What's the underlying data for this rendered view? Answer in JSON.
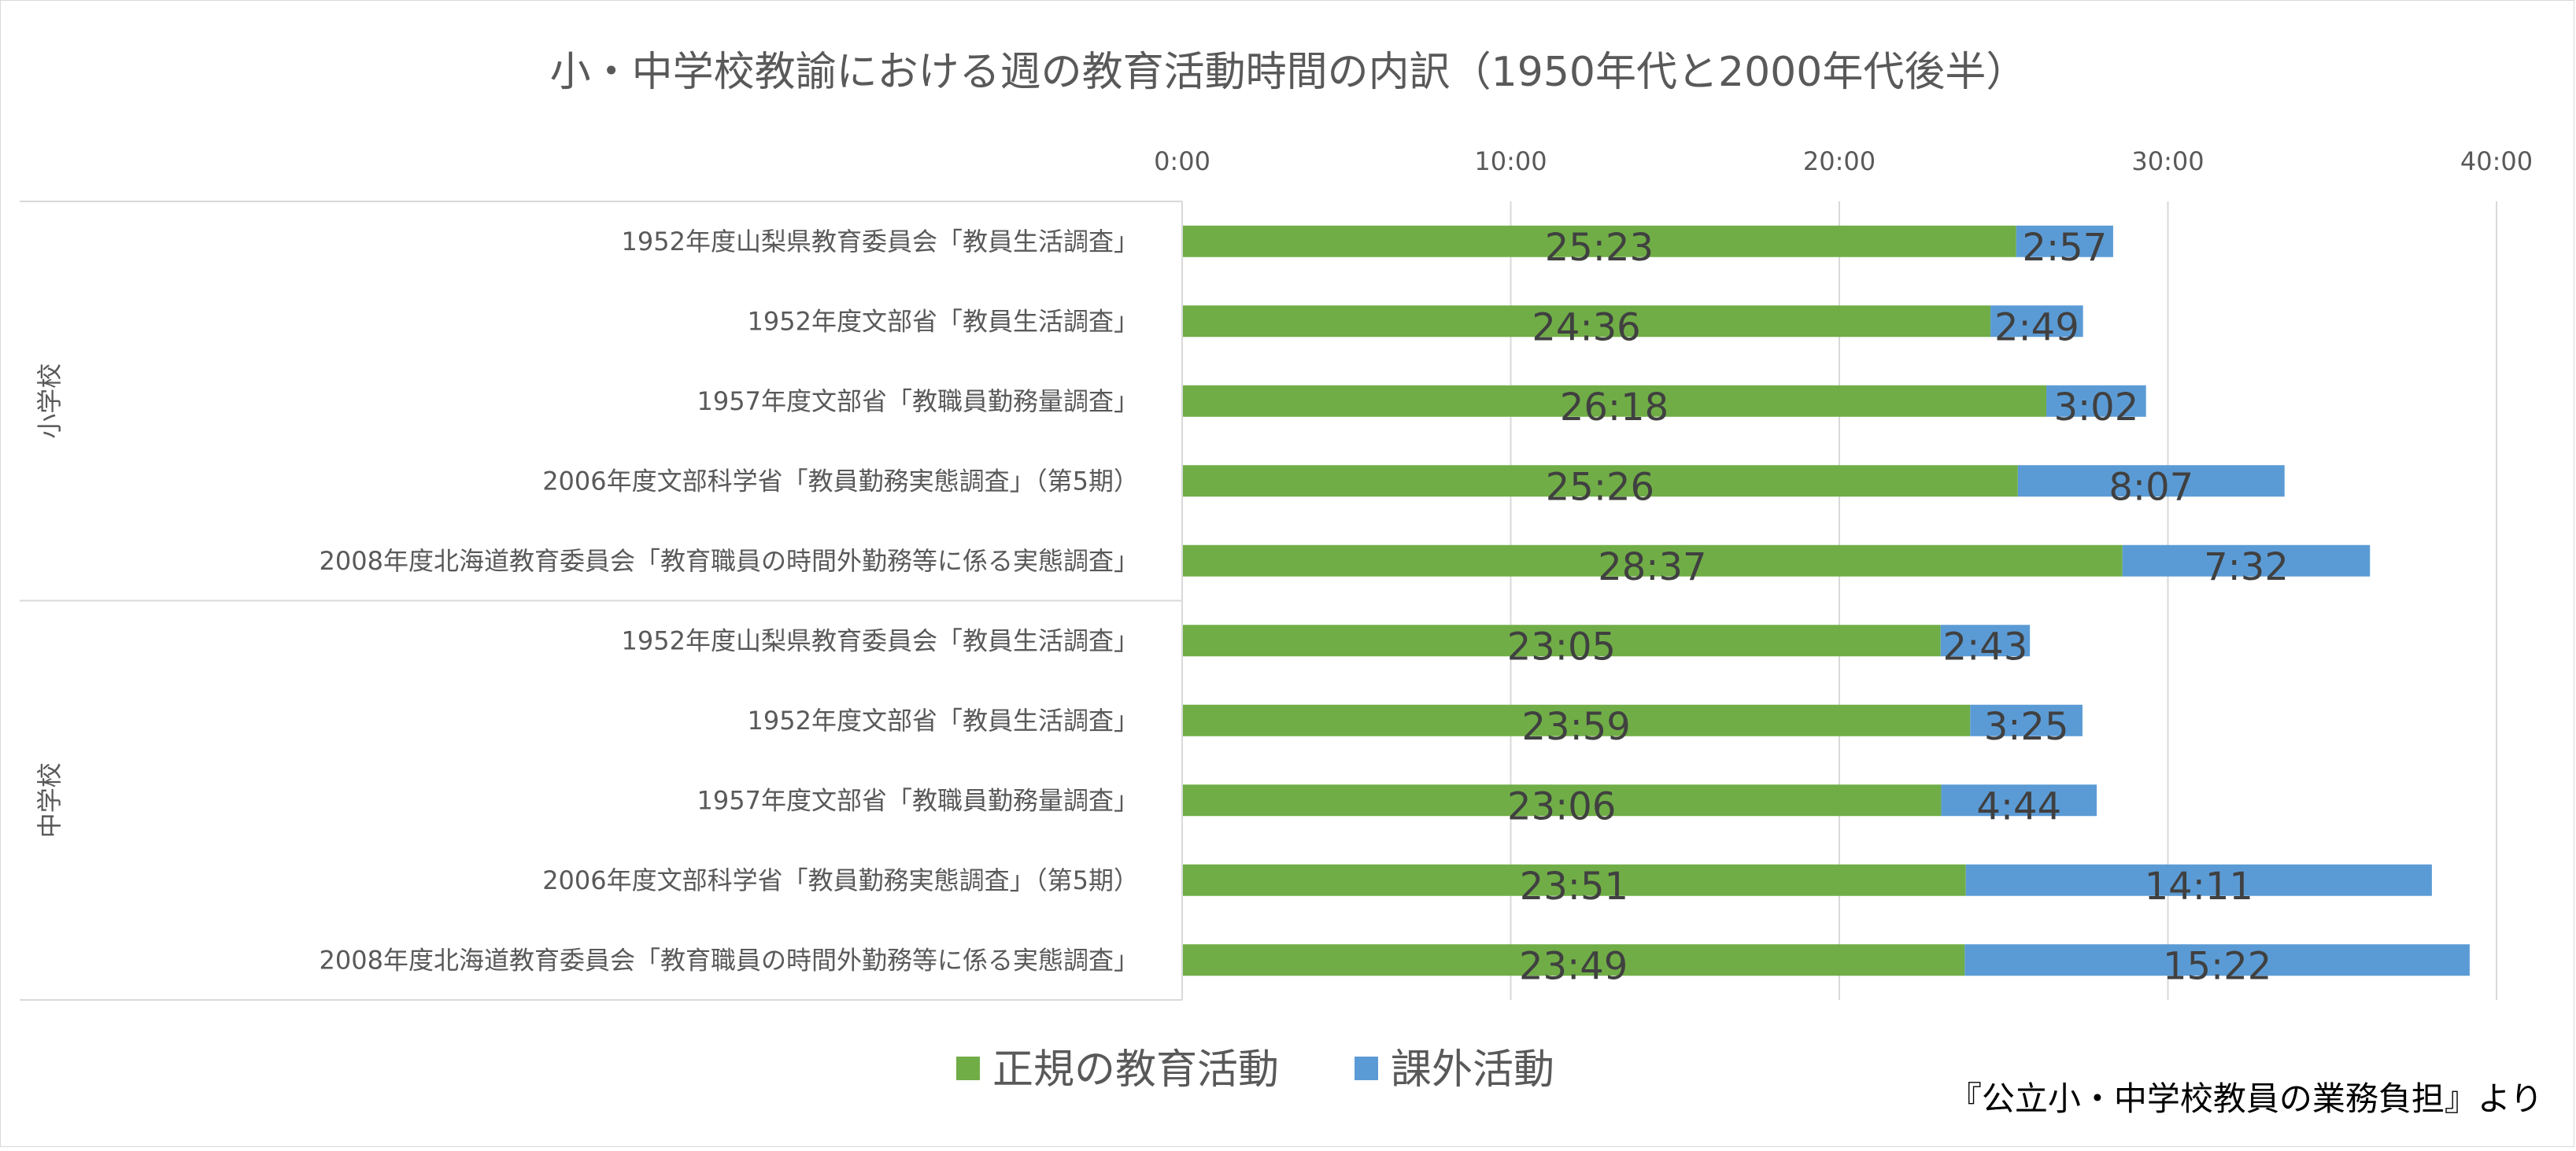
{
  "chart_data": {
    "type": "bar",
    "orientation": "horizontal",
    "stacked": true,
    "title": "小・中学校教諭における週の教育活動時間の内訳（1950年代と2000年代後半）",
    "source_note": "『公立小・中学校教員の業務負担』より",
    "x_axis": {
      "position": "top",
      "range": [
        0,
        2400
      ],
      "unit": "minutes",
      "ticks": [
        {
          "value": 0,
          "label": "0:00"
        },
        {
          "value": 600,
          "label": "10:00"
        },
        {
          "value": 1200,
          "label": "20:00"
        },
        {
          "value": 1800,
          "label": "30:00"
        },
        {
          "value": 2400,
          "label": "40:00"
        }
      ]
    },
    "grid": true,
    "legend_position": "bottom",
    "series": [
      {
        "name": "正規の教育活動",
        "color": "#70ad47"
      },
      {
        "name": "課外活動",
        "color": "#5b9bd5"
      }
    ],
    "groups": [
      {
        "label": "小学校",
        "rows": [
          {
            "category": "1952年度山梨県教育委員会「教員生活調査」",
            "values": [
              1523,
              177
            ],
            "labels": [
              "25:23",
              "2:57"
            ]
          },
          {
            "category": "1952年度文部省「教員生活調査」",
            "values": [
              1476,
              169
            ],
            "labels": [
              "24:36",
              "2:49"
            ]
          },
          {
            "category": "1957年度文部省「教職員勤務量調査」",
            "values": [
              1578,
              182
            ],
            "labels": [
              "26:18",
              "3:02"
            ]
          },
          {
            "category": "2006年度文部科学省「教員勤務実態調査」（第5期）",
            "values": [
              1526,
              487
            ],
            "labels": [
              "25:26",
              "8:07"
            ]
          },
          {
            "category": "2008年度北海道教育委員会「教育職員の時間外勤務等に係る実態調査」",
            "values": [
              1717,
              452
            ],
            "labels": [
              "28:37",
              "7:32"
            ]
          }
        ]
      },
      {
        "label": "中学校",
        "rows": [
          {
            "category": "1952年度山梨県教育委員会「教員生活調査」",
            "values": [
              1385,
              163
            ],
            "labels": [
              "23:05",
              "2:43"
            ]
          },
          {
            "category": "1952年度文部省「教員生活調査」",
            "values": [
              1439,
              205
            ],
            "labels": [
              "23:59",
              "3:25"
            ]
          },
          {
            "category": "1957年度文部省「教職員勤務量調査」",
            "values": [
              1386,
              284
            ],
            "labels": [
              "23:06",
              "4:44"
            ]
          },
          {
            "category": "2006年度文部科学省「教員勤務実態調査」（第5期）",
            "values": [
              1431,
              851
            ],
            "labels": [
              "23:51",
              "14:11"
            ]
          },
          {
            "category": "2008年度北海道教育委員会「教育職員の時間外勤務等に係る実態調査」",
            "values": [
              1429,
              922
            ],
            "labels": [
              "23:49",
              "15:22"
            ]
          }
        ]
      }
    ]
  }
}
